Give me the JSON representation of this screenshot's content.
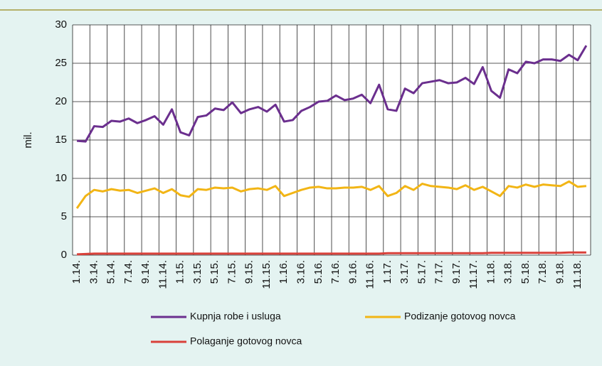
{
  "chart_data": {
    "type": "line",
    "ylabel": "mil.",
    "categories": [
      "1.14.",
      null,
      "3.14.",
      null,
      "5.14.",
      null,
      "7.14.",
      null,
      "9.14.",
      null,
      "11.14.",
      null,
      "1.15.",
      null,
      "3.15.",
      null,
      "5.15.",
      null,
      "7.15.",
      null,
      "9.15.",
      null,
      "11.15.",
      null,
      "1.16.",
      null,
      "3.16.",
      null,
      "5.16.",
      null,
      "7.16.",
      null,
      "9.16.",
      null,
      "11.16.",
      null,
      "1.17.",
      null,
      "3.17.",
      null,
      "5.17.",
      null,
      "7.17.",
      null,
      "9.17.",
      null,
      "11.17.",
      null,
      "1.18.",
      null,
      "3.18.",
      null,
      "5.18.",
      null,
      "7.18.",
      null,
      "9.18.",
      null,
      "11.18.",
      null
    ],
    "series": [
      {
        "name": "Kupnja robe i usluga",
        "color": "#6b2f8e",
        "values": [
          14.9,
          14.8,
          16.8,
          16.7,
          17.5,
          17.4,
          17.8,
          17.2,
          17.6,
          18.1,
          17.0,
          19.0,
          16.0,
          15.6,
          18.0,
          18.2,
          19.1,
          18.9,
          19.9,
          18.5,
          19.0,
          19.3,
          18.7,
          19.6,
          17.4,
          17.6,
          18.8,
          19.3,
          20.0,
          20.1,
          20.8,
          20.2,
          20.4,
          20.9,
          19.8,
          22.2,
          19.0,
          18.8,
          21.7,
          21.1,
          22.4,
          22.6,
          22.8,
          22.4,
          22.5,
          23.1,
          22.3,
          24.5,
          21.4,
          20.5,
          24.2,
          23.7,
          25.2,
          25.0,
          25.5,
          25.5,
          25.3,
          26.1,
          25.4,
          27.3
        ]
      },
      {
        "name": "Podizanje gotovog novca",
        "color": "#f2b515",
        "values": [
          6.1,
          7.7,
          8.5,
          8.3,
          8.6,
          8.4,
          8.5,
          8.1,
          8.4,
          8.7,
          8.1,
          8.6,
          7.8,
          7.6,
          8.6,
          8.5,
          8.8,
          8.7,
          8.8,
          8.3,
          8.6,
          8.7,
          8.5,
          9.0,
          7.7,
          8.1,
          8.5,
          8.8,
          8.9,
          8.7,
          8.7,
          8.8,
          8.8,
          8.9,
          8.5,
          9.0,
          7.7,
          8.1,
          9.0,
          8.5,
          9.3,
          9.0,
          8.9,
          8.8,
          8.6,
          9.1,
          8.5,
          8.9,
          8.3,
          7.7,
          9.0,
          8.8,
          9.2,
          8.9,
          9.2,
          9.1,
          9.0,
          9.6,
          8.9,
          9.0
        ]
      },
      {
        "name": "Polaganje gotovog novca",
        "color": "#d9413a",
        "values": [
          0.1,
          0.15,
          0.2,
          0.2,
          0.2,
          0.2,
          0.2,
          0.2,
          0.2,
          0.2,
          0.2,
          0.2,
          0.2,
          0.2,
          0.2,
          0.2,
          0.2,
          0.2,
          0.2,
          0.2,
          0.2,
          0.2,
          0.2,
          0.2,
          0.2,
          0.2,
          0.2,
          0.2,
          0.2,
          0.2,
          0.2,
          0.2,
          0.2,
          0.2,
          0.2,
          0.2,
          0.25,
          0.25,
          0.25,
          0.25,
          0.25,
          0.25,
          0.25,
          0.25,
          0.25,
          0.25,
          0.25,
          0.25,
          0.3,
          0.3,
          0.3,
          0.3,
          0.3,
          0.3,
          0.3,
          0.3,
          0.3,
          0.35,
          0.35,
          0.35
        ]
      }
    ],
    "ylim": [
      0,
      30
    ],
    "yticks": [
      0,
      5,
      10,
      15,
      20,
      25,
      30
    ],
    "grid": true
  }
}
